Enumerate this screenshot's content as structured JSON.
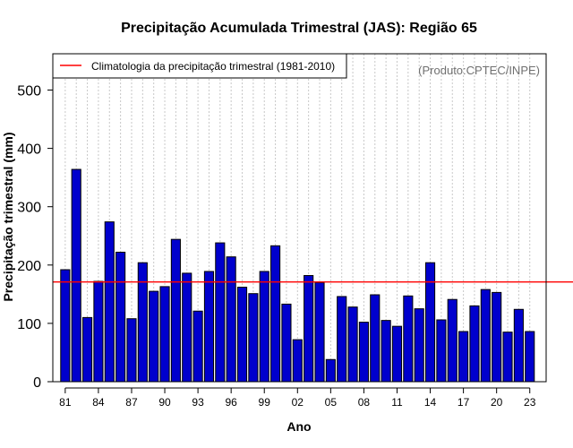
{
  "chart_data": {
    "type": "bar",
    "title": "Precipitação Acumulada Trimestral (JAS): Região 65",
    "xlabel": "Ano",
    "ylabel": "Precipitação trimestral (mm)",
    "years": [
      1981,
      1982,
      1983,
      1984,
      1985,
      1986,
      1987,
      1988,
      1989,
      1990,
      1991,
      1992,
      1993,
      1994,
      1995,
      1996,
      1997,
      1998,
      1999,
      2000,
      2001,
      2002,
      2003,
      2004,
      2005,
      2006,
      2007,
      2008,
      2009,
      2010,
      2011,
      2012,
      2013,
      2014,
      2015,
      2016,
      2017,
      2018,
      2019,
      2020,
      2021,
      2022,
      2023
    ],
    "values": [
      192,
      364,
      110,
      172,
      274,
      222,
      108,
      204,
      155,
      163,
      244,
      186,
      121,
      189,
      238,
      214,
      162,
      151,
      189,
      233,
      133,
      72,
      182,
      170,
      38,
      146,
      128,
      102,
      149,
      105,
      95,
      147,
      125,
      204,
      106,
      141,
      86,
      130,
      158,
      153,
      85,
      124,
      86
    ],
    "xticks": [
      "81",
      "84",
      "87",
      "90",
      "93",
      "96",
      "99",
      "02",
      "05",
      "08",
      "11",
      "14",
      "17",
      "20",
      "23"
    ],
    "yticks": [
      0,
      100,
      200,
      300,
      400,
      500
    ],
    "ylim": [
      0,
      560
    ],
    "climatology": 171,
    "bar_color": "#0000CD",
    "climatology_color": "#FF0000",
    "grid": "vertical dotted",
    "legend": {
      "position": "top-left",
      "label": "Climatologia da precipitação trimestral (1981-2010)"
    },
    "source": "(Produto:CPTEC/INPE)"
  }
}
